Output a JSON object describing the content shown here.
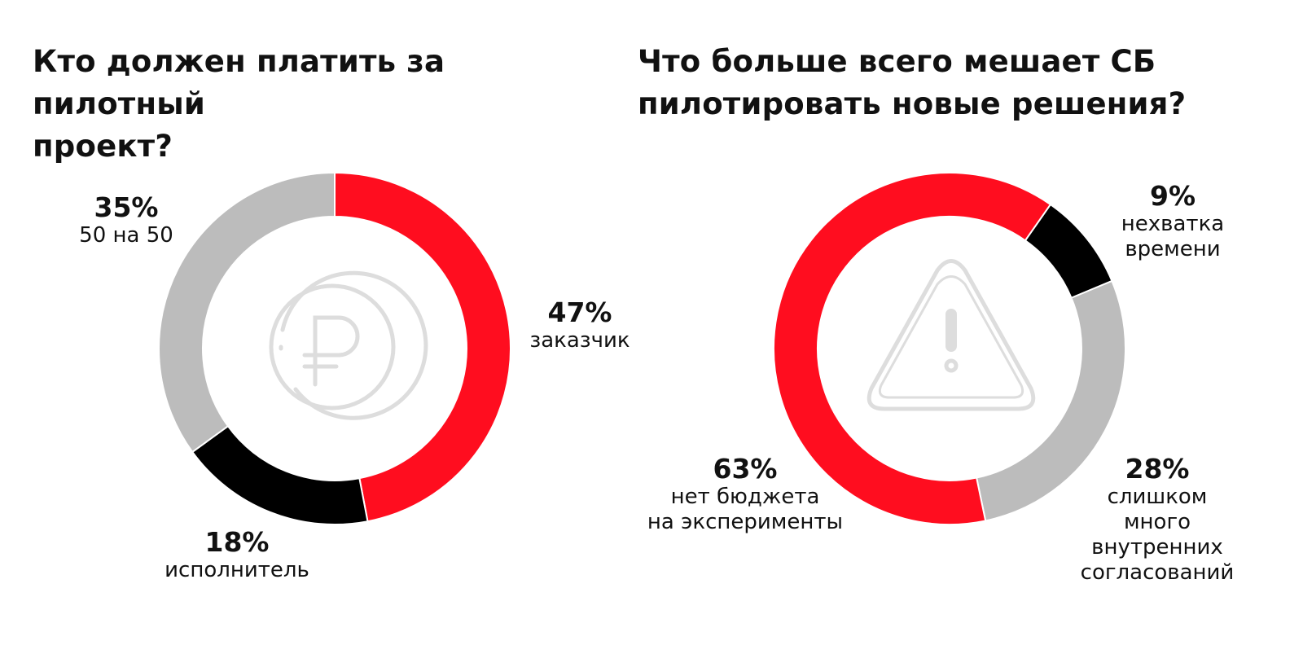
{
  "chart_data": [
    {
      "type": "pie",
      "title": "Кто должен платить за пилотный\nпроект?",
      "icon": "ruble-coin-icon",
      "slices": [
        {
          "label": "заказчик",
          "value": 47,
          "value_label": "47%",
          "color": "#ff0d1f"
        },
        {
          "label": "исполнитель",
          "value": 18,
          "value_label": "18%",
          "color": "#000000"
        },
        {
          "label": "50 на 50",
          "value": 35,
          "value_label": "35%",
          "color": "#bcbcbc"
        }
      ]
    },
    {
      "type": "pie",
      "title": "Что больше всего мешает СБ\nпилотировать новые решения?",
      "icon": "warning-triangle-icon",
      "slices": [
        {
          "label": "нехватка\nвремени",
          "value": 9,
          "value_label": "9%",
          "color": "#000000"
        },
        {
          "label": "слишком много\nвнутренних\nсогласований",
          "value": 28,
          "value_label": "28%",
          "color": "#bcbcbc"
        },
        {
          "label": "нет бюджета\nна эксперименты",
          "value": 63,
          "value_label": "63%",
          "color": "#ff0d1f"
        }
      ]
    }
  ]
}
